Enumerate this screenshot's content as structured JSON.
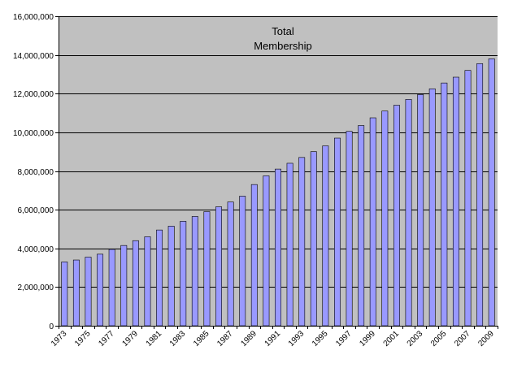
{
  "chart_data": {
    "type": "bar",
    "title_lines": [
      "Total",
      "Membership"
    ],
    "xlabel": "",
    "ylabel": "",
    "ylim": [
      0,
      16000000
    ],
    "yticks": [
      0,
      2000000,
      4000000,
      6000000,
      8000000,
      10000000,
      12000000,
      14000000,
      16000000
    ],
    "ytick_labels": [
      "0",
      "2,000,000",
      "4,000,000",
      "6,000,000",
      "8,000,000",
      "10,000,000",
      "12,000,000",
      "14,000,000",
      "16,000,000"
    ],
    "categories": [
      "1973",
      "1974",
      "1975",
      "1976",
      "1977",
      "1978",
      "1979",
      "1980",
      "1981",
      "1982",
      "1983",
      "1984",
      "1985",
      "1986",
      "1987",
      "1988",
      "1989",
      "1990",
      "1991",
      "1992",
      "1993",
      "1994",
      "1995",
      "1996",
      "1997",
      "1998",
      "1999",
      "2000",
      "2001",
      "2002",
      "2003",
      "2004",
      "2005",
      "2006",
      "2007",
      "2008",
      "2009"
    ],
    "xtick_labels": [
      "1973",
      "1975",
      "1977",
      "1979",
      "1981",
      "1983",
      "1985",
      "1987",
      "1989",
      "1991",
      "1993",
      "1995",
      "1997",
      "1999",
      "2001",
      "2003",
      "2005",
      "2007",
      "2009"
    ],
    "values": [
      3300000,
      3400000,
      3550000,
      3700000,
      3950000,
      4150000,
      4400000,
      4600000,
      4950000,
      5150000,
      5400000,
      5650000,
      5900000,
      6150000,
      6400000,
      6700000,
      7300000,
      7750000,
      8100000,
      8400000,
      8700000,
      9000000,
      9300000,
      9700000,
      10050000,
      10350000,
      10750000,
      11100000,
      11400000,
      11700000,
      11950000,
      12250000,
      12550000,
      12850000,
      13200000,
      13550000,
      13800000
    ],
    "grid": true,
    "legend": false,
    "colors": {
      "plot_bg": "#c0c0c0",
      "bar_fill": "#9999ff",
      "bar_stroke": "#000000",
      "grid": "#000000"
    }
  }
}
